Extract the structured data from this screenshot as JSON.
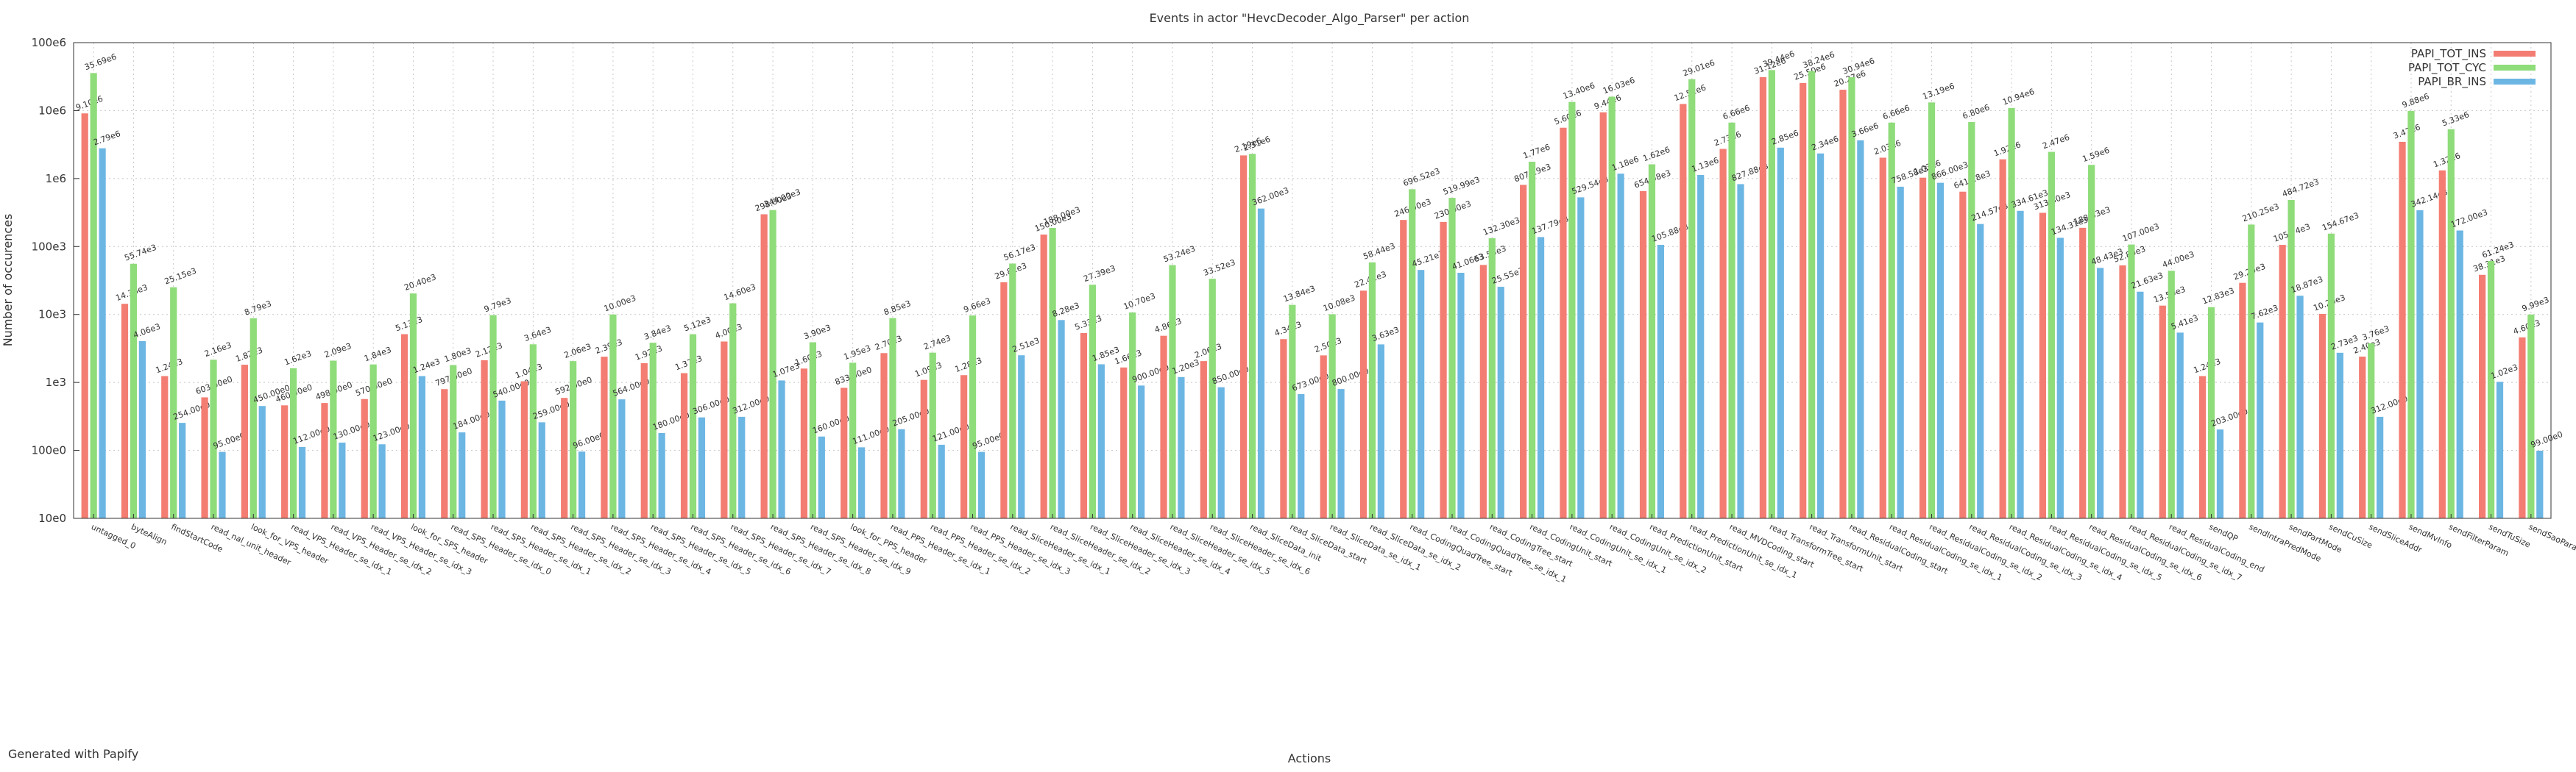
{
  "chart_data": {
    "type": "bar",
    "title": "Events in actor \"HevcDecoder_Algo_Parser\" per action",
    "xlabel": "Actions",
    "ylabel": "Number of occurences",
    "footer": "Generated with Papify",
    "log_scale": true,
    "grid": true,
    "legend": "upper right",
    "ylim": [
      10,
      100000000
    ],
    "yticks": [
      {
        "value": 10,
        "label": "10e0"
      },
      {
        "value": 100,
        "label": "100e0"
      },
      {
        "value": 1000,
        "label": "1e3"
      },
      {
        "value": 10000,
        "label": "10e3"
      },
      {
        "value": 100000,
        "label": "100e3"
      },
      {
        "value": 1000000,
        "label": "1e6"
      },
      {
        "value": 10000000,
        "label": "10e6"
      },
      {
        "value": 100000000,
        "label": "100e6"
      }
    ],
    "categories": [
      "untagged_0",
      "byteAlign",
      "findStartCode",
      "read_nal_unit_header",
      "look_for_VPS_header",
      "read_VPS_Header_se_idx_1",
      "read_VPS_Header_se_idx_2",
      "read_VPS_Header_se_idx_3",
      "look_for_SPS_header",
      "read_SPS_Header_se_idx_0",
      "read_SPS_Header_se_idx_1",
      "read_SPS_Header_se_idx_2",
      "read_SPS_Header_se_idx_3",
      "read_SPS_Header_se_idx_4",
      "read_SPS_Header_se_idx_5",
      "read_SPS_Header_se_idx_6",
      "read_SPS_Header_se_idx_7",
      "read_SPS_Header_se_idx_8",
      "read_SPS_Header_se_idx_9",
      "look_for_PPS_header",
      "read_PPS_Header_se_idx_1",
      "read_PPS_Header_se_idx_2",
      "read_PPS_Header_se_idx_3",
      "read_SliceHeader_se_idx_1",
      "read_SliceHeader_se_idx_2",
      "read_SliceHeader_se_idx_3",
      "read_SliceHeader_se_idx_4",
      "read_SliceHeader_se_idx_5",
      "read_SliceHeader_se_idx_6",
      "read_SliceData_init",
      "read_SliceData_start",
      "read_SliceData_se_idx_1",
      "read_SliceData_se_idx_2",
      "read_CodingQuadTree_start",
      "read_CodingQuadTree_se_idx_1",
      "read_CodingTree_start",
      "read_CodingUnit_start",
      "read_CodingUnit_se_idx_1",
      "read_CodingUnit_se_idx_2",
      "read_PredictionUnit_start",
      "read_PredictionUnit_se_idx_1",
      "read_MVDCoding_start",
      "read_TransformTree_start",
      "read_TransformUnit_start",
      "read_ResidualCoding_start",
      "read_ResidualCoding_se_idx_1",
      "read_ResidualCoding_se_idx_2",
      "read_ResidualCoding_se_idx_3",
      "read_ResidualCoding_se_idx_4",
      "read_ResidualCoding_se_idx_5",
      "read_ResidualCoding_se_idx_6",
      "read_ResidualCoding_se_idx_7",
      "read_ResidualCoding_end",
      "sendQP",
      "sendIntraPredMode",
      "sendPartMode",
      "sendCuSize",
      "sendSliceAddr",
      "sendMvInfo",
      "sendFilterParam",
      "sendTuSize",
      "sendSaoParam"
    ],
    "series": [
      {
        "name": "PAPI_TOT_INS",
        "color": "#f37d72",
        "values": [
          9100000,
          14360,
          1240,
          603,
          1820,
          460,
          498,
          570,
          5130,
          797,
          2120,
          1040,
          592,
          2390,
          1920,
          1370,
          4000,
          298000,
          1600,
          833,
          2700,
          1090,
          1280,
          29810,
          150000,
          5330,
          1660,
          4860,
          2060,
          2190000,
          4340,
          2500,
          22410,
          246000,
          230000,
          53550,
          807290,
          5600000,
          9440000,
          654980,
          12520000,
          2730000,
          31120000,
          25500000,
          20270000,
          2030000,
          1030000,
          641180,
          1920000,
          313300,
          188530,
          52800,
          13500,
          1240,
          29200,
          105740,
          10200,
          2400,
          3470000,
          1320000,
          38310,
          4600
        ],
        "value_labels": [
          "9.10e6",
          "14.36e3",
          "1.24e3",
          "603.00e0",
          "1.82e3",
          "460.00e0",
          "498.00e0",
          "570.00e0",
          "5.13e3",
          "797.00e0",
          "2.12e3",
          "1.04e3",
          "592.00e0",
          "2.39e3",
          "1.92e3",
          "1.37e3",
          "4.00e3",
          "298.00e3",
          "1.60e3",
          "833.00e0",
          "2.70e3",
          "1.09e3",
          "1.28e3",
          "29.81e3",
          "150.00e3",
          "5.33e3",
          "1.66e3",
          "4.86e3",
          "2.06e3",
          "2.19e6",
          "4.34e3",
          "2.50e3",
          "22.41e3",
          "246.00e3",
          "230.00e3",
          "53.55e3",
          "807.29e3",
          "5.60e6",
          "9.44e6",
          "654.98e3",
          "12.52e6",
          "2.73e6",
          "31.12e6",
          "25.50e6",
          "20.27e6",
          "2.03e6",
          "1.03e6",
          "641.18e3",
          "1.92e6",
          "313.30e3",
          "188.53e3",
          "52.80e3",
          "13.50e3",
          "1.24e3",
          "29.20e3",
          "105.74e3",
          "10.20e3",
          "2.40e3",
          "3.47e6",
          "1.32e6",
          "38.31e3",
          "4.60e3"
        ]
      },
      {
        "name": "PAPI_TOT_CYC",
        "color": "#8fdc7a",
        "values": [
          35690000,
          55740,
          25150,
          2160,
          8790,
          1620,
          2090,
          1840,
          20400,
          1800,
          9790,
          3640,
          2060,
          10000,
          3840,
          5120,
          14600,
          344000,
          3900,
          1950,
          8850,
          2740,
          9660,
          56170,
          188000,
          27390,
          10700,
          53240,
          33520,
          2310000,
          13840,
          10080,
          58440,
          696520,
          519990,
          132300,
          1770000,
          13400000,
          16030000,
          1620000,
          29010000,
          6660000,
          39440000,
          38240000,
          30940000,
          6660000,
          13190000,
          6800000,
          10940000,
          2470000,
          1590000,
          107000,
          44000,
          12830,
          210250,
          484720,
          154670,
          3760,
          9880000,
          5330000,
          61240,
          9990
        ],
        "value_labels": [
          "35.69e6",
          "55.74e3",
          "25.15e3",
          "2.16e3",
          "8.79e3",
          "1.62e3",
          "2.09e3",
          "1.84e3",
          "20.40e3",
          "1.80e3",
          "9.79e3",
          "3.64e3",
          "2.06e3",
          "10.00e3",
          "3.84e3",
          "5.12e3",
          "14.60e3",
          "344.00e3",
          "3.90e3",
          "1.95e3",
          "8.85e3",
          "2.74e3",
          "9.66e3",
          "56.17e3",
          "188.00e3",
          "27.39e3",
          "10.70e3",
          "53.24e3",
          "33.52e3",
          "2.31e6",
          "13.84e3",
          "10.08e3",
          "58.44e3",
          "696.52e3",
          "519.99e3",
          "132.30e3",
          "1.77e6",
          "13.40e6",
          "16.03e6",
          "1.62e6",
          "29.01e6",
          "6.66e6",
          "39.44e6",
          "38.24e6",
          "30.94e6",
          "6.66e6",
          "13.19e6",
          "6.80e6",
          "10.94e6",
          "2.47e6",
          "1.59e6",
          "107.00e3",
          "44.00e3",
          "12.83e3",
          "210.25e3",
          "484.72e3",
          "154.67e3",
          "3.76e3",
          "9.88e6",
          "5.33e6",
          "61.24e3",
          "9.99e3"
        ]
      },
      {
        "name": "PAPI_BR_INS",
        "color": "#6cb6e4",
        "values": [
          2790000,
          4060,
          254,
          95,
          450,
          112,
          130,
          123,
          1240,
          184,
          540,
          259,
          96,
          564,
          180,
          306,
          312,
          1070,
          160,
          111,
          205,
          121,
          95,
          2510,
          8280,
          1850,
          900,
          1200,
          850,
          362000,
          673,
          800,
          3630,
          45210,
          41060,
          25550,
          137790,
          529540,
          1180000,
          105880,
          1130000,
          827880,
          2850000,
          2340000,
          3660000,
          758580,
          866000,
          214570,
          334610,
          134310,
          48430,
          21630,
          5410,
          203,
          7620,
          18870,
          2730,
          312,
          342140,
          172000,
          1020,
          99
        ],
        "value_labels": [
          "2.79e6",
          "4.06e3",
          "254.00e0",
          "95.00e0",
          "450.00e0",
          "112.00e0",
          "130.00e0",
          "123.00e0",
          "1.24e3",
          "184.00e0",
          "540.00e0",
          "259.00e0",
          "96.00e0",
          "564.00e0",
          "180.00e0",
          "306.00e0",
          "312.00e0",
          "1.07e3",
          "160.00e0",
          "111.00e0",
          "205.00e0",
          "121.00e0",
          "95.00e0",
          "2.51e3",
          "8.28e3",
          "1.85e3",
          "900.00e0",
          "1.20e3",
          "850.00e0",
          "362.00e3",
          "673.00e0",
          "800.00e0",
          "3.63e3",
          "45.21e3",
          "41.06e3",
          "25.55e3",
          "137.79e3",
          "529.54e3",
          "1.18e6",
          "105.88e3",
          "1.13e6",
          "827.88e3",
          "2.85e6",
          "2.34e6",
          "3.66e6",
          "758.58e3",
          "866.00e3",
          "214.57e3",
          "334.61e3",
          "134.31e3",
          "48.43e3",
          "21.63e3",
          "5.41e3",
          "203.00e0",
          "7.62e3",
          "18.87e3",
          "2.73e3",
          "312.00e0",
          "342.14e3",
          "172.00e3",
          "1.02e3",
          "99.00e0"
        ]
      }
    ]
  }
}
